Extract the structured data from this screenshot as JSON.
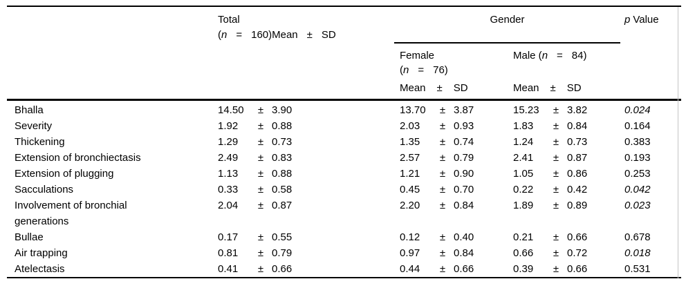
{
  "symbols": {
    "pm": "±",
    "paren": "("
  },
  "header": {
    "total": {
      "line1": "Total",
      "paren": "(",
      "n": "n",
      "eq": "=",
      "rest": "160)Mean",
      "pm": "±",
      "sd": "SD"
    },
    "gender": {
      "label": "Gender"
    },
    "female": {
      "name": "Female",
      "paren": "(",
      "n": "n",
      "eq": "=",
      "rest": "76)"
    },
    "male": {
      "prefix": "Male (",
      "n": "n",
      "eq": "=",
      "rest": "84)"
    },
    "stat": {
      "mean": "Mean",
      "pm": "±",
      "sd": "SD"
    },
    "p": {
      "p": "p",
      "rest": "Value"
    }
  },
  "rows": [
    {
      "label": "Bhalla",
      "total": {
        "mean": "14.50",
        "sd": "3.90"
      },
      "female": {
        "mean": "13.70",
        "sd": "3.87"
      },
      "male": {
        "mean": "15.23",
        "sd": "3.82"
      },
      "p": "0.024",
      "p_italic": true
    },
    {
      "label": "Severity",
      "total": {
        "mean": "1.92",
        "sd": "0.88"
      },
      "female": {
        "mean": "2.03",
        "sd": "0.93"
      },
      "male": {
        "mean": "1.83",
        "sd": "0.84"
      },
      "p": "0.164",
      "p_italic": false
    },
    {
      "label": "Thickening",
      "total": {
        "mean": "1.29",
        "sd": "0.73"
      },
      "female": {
        "mean": "1.35",
        "sd": "0.74"
      },
      "male": {
        "mean": "1.24",
        "sd": "0.73"
      },
      "p": "0.383",
      "p_italic": false
    },
    {
      "label": "Extension of bronchiectasis",
      "total": {
        "mean": "2.49",
        "sd": "0.83"
      },
      "female": {
        "mean": "2.57",
        "sd": "0.79"
      },
      "male": {
        "mean": "2.41",
        "sd": "0.87"
      },
      "p": "0.193",
      "p_italic": false
    },
    {
      "label": "Extension of plugging",
      "total": {
        "mean": "1.13",
        "sd": "0.88"
      },
      "female": {
        "mean": "1.21",
        "sd": "0.90"
      },
      "male": {
        "mean": "1.05",
        "sd": "0.86"
      },
      "p": "0.253",
      "p_italic": false
    },
    {
      "label": "Sacculations",
      "total": {
        "mean": "0.33",
        "sd": "0.58"
      },
      "female": {
        "mean": "0.45",
        "sd": "0.70"
      },
      "male": {
        "mean": "0.22",
        "sd": "0.42"
      },
      "p": "0.042",
      "p_italic": true
    },
    {
      "label": "Involvement of bronchial\ngenerations",
      "total": {
        "mean": "2.04",
        "sd": "0.87"
      },
      "female": {
        "mean": "2.20",
        "sd": "0.84"
      },
      "male": {
        "mean": "1.89",
        "sd": "0.89"
      },
      "p": "0.023",
      "p_italic": true
    },
    {
      "label": "Bullae",
      "total": {
        "mean": "0.17",
        "sd": "0.55"
      },
      "female": {
        "mean": "0.12",
        "sd": "0.40"
      },
      "male": {
        "mean": "0.21",
        "sd": "0.66"
      },
      "p": "0.678",
      "p_italic": false
    },
    {
      "label": "Air trapping",
      "total": {
        "mean": "0.81",
        "sd": "0.79"
      },
      "female": {
        "mean": "0.97",
        "sd": "0.84"
      },
      "male": {
        "mean": "0.66",
        "sd": "0.72"
      },
      "p": "0.018",
      "p_italic": true
    },
    {
      "label": "Atelectasis",
      "total": {
        "mean": "0.41",
        "sd": "0.66"
      },
      "female": {
        "mean": "0.44",
        "sd": "0.66"
      },
      "male": {
        "mean": "0.39",
        "sd": "0.66"
      },
      "p": "0.531",
      "p_italic": false
    }
  ]
}
